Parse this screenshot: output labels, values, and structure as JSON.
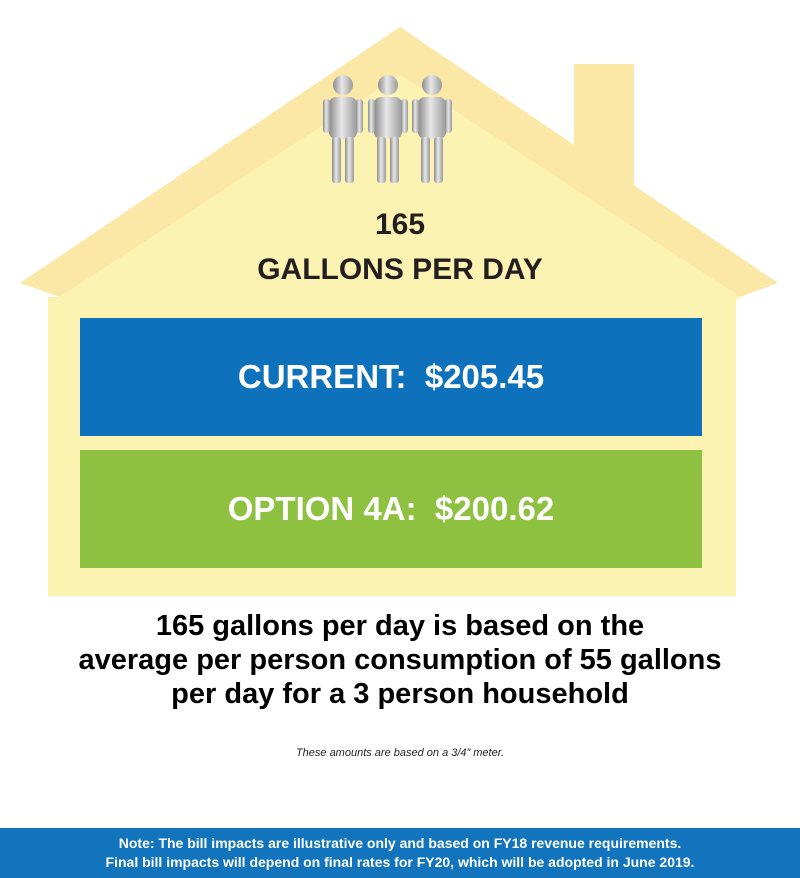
{
  "household": {
    "people_icon": "three-people-icon",
    "usage_value": "165",
    "usage_unit": "GALLONS PER DAY"
  },
  "rates": {
    "current": "CURRENT:  $205.45",
    "option": "OPTION 4A:  $200.62"
  },
  "explanation": {
    "line1": "165 gallons per day is based on the",
    "line2": "average per person consumption of 55 gallons",
    "line3": "per day for a 3 person household"
  },
  "meter_note": "These amounts are based on a 3/4” meter.",
  "footer": {
    "line1": "Note: The bill impacts are illustrative only and based on FY18 revenue requirements.",
    "line2": "Final bill impacts will depend on final rates for FY20, which will be adopted in June 2019."
  },
  "colors": {
    "roof": "#fbe8a6",
    "wall": "#fcf2b1",
    "current_panel": "#0d72bb",
    "option_panel": "#8dc13f",
    "footer": "#1174bc"
  }
}
